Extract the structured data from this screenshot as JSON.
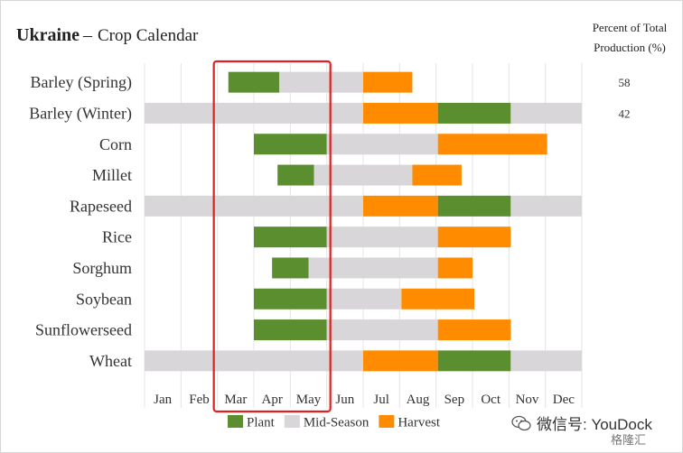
{
  "header": {
    "country": "Ukraine",
    "separator": "–",
    "subtitle": "Crop Calendar",
    "percent_header_line1": "Percent of Total",
    "percent_header_line2": "Production (%)"
  },
  "watermark": {
    "text": "微信号: YouDock",
    "badge": "格隆汇"
  },
  "colors": {
    "plant": "#5a8e2e",
    "mid_season": "#d8d6d9",
    "harvest": "#ff8c00",
    "highlight_box": "#e01f1f",
    "grid": "#e4e4e4"
  },
  "chart_data": {
    "type": "bar",
    "title": "Ukraine – Crop Calendar",
    "x_axis": {
      "ticks": [
        "Jan",
        "Feb",
        "Mar",
        "Apr",
        "May",
        "Jun",
        "Jul",
        "Aug",
        "Sep",
        "Oct",
        "Nov",
        "Dec"
      ],
      "range_months": [
        0,
        12
      ]
    },
    "legend": {
      "position": "bottom-center",
      "entries": [
        {
          "label": "Plant",
          "key": "plant"
        },
        {
          "label": "Mid-Season",
          "key": "mid_season"
        },
        {
          "label": "Harvest",
          "key": "harvest"
        }
      ]
    },
    "highlight": {
      "from_month": 2.0,
      "to_month": 5.0
    },
    "crops": [
      {
        "name": "Barley (Spring)",
        "percent": "58",
        "segments": [
          [
            "plant",
            2.3,
            3.7
          ],
          [
            "mid_season",
            3.7,
            6.0
          ],
          [
            "harvest",
            6.0,
            7.35
          ]
        ]
      },
      {
        "name": "Barley (Winter)",
        "percent": "42",
        "segments": [
          [
            "mid_season",
            0,
            6.0
          ],
          [
            "harvest",
            6.0,
            8.05
          ],
          [
            "plant",
            8.05,
            10.05
          ],
          [
            "mid_season",
            10.05,
            12.0
          ]
        ]
      },
      {
        "name": "Corn",
        "percent": "",
        "segments": [
          [
            "plant",
            3.0,
            5.0
          ],
          [
            "mid_season",
            5.0,
            8.05
          ],
          [
            "harvest",
            8.05,
            11.05
          ]
        ]
      },
      {
        "name": "Millet",
        "percent": "",
        "segments": [
          [
            "plant",
            3.65,
            4.65
          ],
          [
            "mid_season",
            4.65,
            7.35
          ],
          [
            "harvest",
            7.35,
            8.7
          ]
        ]
      },
      {
        "name": "Rapeseed",
        "percent": "",
        "segments": [
          [
            "mid_season",
            0,
            6.0
          ],
          [
            "harvest",
            6.0,
            8.05
          ],
          [
            "plant",
            8.05,
            10.05
          ],
          [
            "mid_season",
            10.05,
            12.0
          ]
        ]
      },
      {
        "name": "Rice",
        "percent": "",
        "segments": [
          [
            "plant",
            3.0,
            5.0
          ],
          [
            "mid_season",
            5.0,
            8.05
          ],
          [
            "harvest",
            8.05,
            10.05
          ]
        ]
      },
      {
        "name": "Sorghum",
        "percent": "",
        "segments": [
          [
            "plant",
            3.5,
            4.5
          ],
          [
            "mid_season",
            4.5,
            8.05
          ],
          [
            "harvest",
            8.05,
            9.0
          ]
        ]
      },
      {
        "name": "Soybean",
        "percent": "",
        "segments": [
          [
            "plant",
            3.0,
            5.0
          ],
          [
            "mid_season",
            5.0,
            7.05
          ],
          [
            "harvest",
            7.05,
            9.05
          ]
        ]
      },
      {
        "name": "Sunflowerseed",
        "percent": "",
        "segments": [
          [
            "plant",
            3.0,
            5.0
          ],
          [
            "mid_season",
            5.0,
            8.05
          ],
          [
            "harvest",
            8.05,
            10.05
          ]
        ]
      },
      {
        "name": "Wheat",
        "percent": "",
        "segments": [
          [
            "mid_season",
            0,
            6.0
          ],
          [
            "harvest",
            6.0,
            8.05
          ],
          [
            "plant",
            8.05,
            10.05
          ],
          [
            "mid_season",
            10.05,
            12.0
          ]
        ]
      }
    ]
  }
}
